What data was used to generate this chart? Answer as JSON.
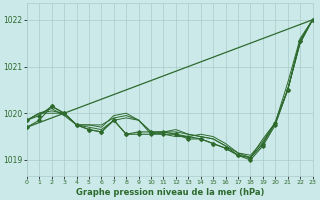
{
  "title": "Graphe pression niveau de la mer (hPa)",
  "background_color": "#cce9e9",
  "grid_color": "#aacccc",
  "line_color": "#2d6a2d",
  "xlim": [
    0,
    23
  ],
  "ylim": [
    1018.65,
    1022.35
  ],
  "yticks": [
    1019,
    1020,
    1021,
    1022
  ],
  "xticks": [
    0,
    1,
    2,
    3,
    4,
    5,
    6,
    7,
    8,
    9,
    10,
    11,
    12,
    13,
    14,
    15,
    16,
    17,
    18,
    19,
    20,
    21,
    22,
    23
  ],
  "straight_line": [
    [
      0,
      1019.7
    ],
    [
      23,
      1022.0
    ]
  ],
  "curved_lines": [
    [
      1019.85,
      1020.0,
      1020.0,
      1020.0,
      1019.75,
      1019.75,
      1019.75,
      1019.9,
      1019.95,
      1019.85,
      1019.55,
      1019.6,
      1019.65,
      1019.55,
      1019.5,
      1019.45,
      1019.3,
      1019.1,
      1019.05,
      1019.45,
      1019.8,
      1020.65,
      1021.6,
      1022.0
    ],
    [
      1019.85,
      1020.0,
      1020.05,
      1020.0,
      1019.75,
      1019.75,
      1019.7,
      1019.95,
      1020.0,
      1019.85,
      1019.6,
      1019.55,
      1019.5,
      1019.5,
      1019.55,
      1019.5,
      1019.35,
      1019.15,
      1019.05,
      1019.35,
      1019.8,
      1020.5,
      1021.5,
      1022.0
    ],
    [
      1019.85,
      1020.0,
      1020.1,
      1019.95,
      1019.75,
      1019.7,
      1019.65,
      1019.85,
      1019.9,
      1019.85,
      1019.6,
      1019.6,
      1019.6,
      1019.55,
      1019.5,
      1019.45,
      1019.3,
      1019.15,
      1019.1,
      1019.4,
      1019.8,
      1020.5,
      1021.5,
      1022.0
    ]
  ],
  "marker_line": [
    1019.85,
    1019.95,
    1020.15,
    1020.0,
    1019.75,
    1019.65,
    1019.6,
    1019.85,
    1019.55,
    1019.6,
    1019.6,
    1019.6,
    1019.55,
    1019.5,
    1019.45,
    1019.35,
    1019.25,
    1019.1,
    1019.05,
    1019.35,
    1019.8,
    1020.5,
    1021.55,
    1022.0
  ],
  "marker_line2": [
    1019.7,
    1019.85,
    1020.15,
    1020.0,
    1019.75,
    1019.65,
    1019.6,
    1019.85,
    1019.55,
    1019.55,
    1019.55,
    1019.55,
    1019.55,
    1019.45,
    1019.45,
    1019.35,
    1019.25,
    1019.1,
    1019.0,
    1019.3,
    1019.75,
    1020.5,
    1021.55,
    1022.0
  ]
}
